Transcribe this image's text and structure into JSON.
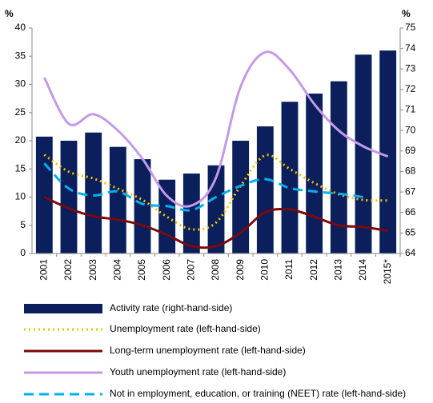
{
  "chart_data": {
    "type": "bar_line",
    "y_label": "%",
    "y2_label": "%",
    "categories": [
      "2001",
      "2002",
      "2003",
      "2004",
      "2005",
      "2006",
      "2007",
      "2008",
      "2009",
      "2010",
      "2011",
      "2012",
      "2013",
      "2014",
      "2015*"
    ],
    "ylim": [
      0,
      40
    ],
    "yticks": [
      0,
      5,
      10,
      15,
      20,
      25,
      30,
      35,
      40
    ],
    "y2lim": [
      64,
      75
    ],
    "y2ticks": [
      64,
      65,
      66,
      67,
      68,
      69,
      70,
      71,
      72,
      73,
      74,
      75
    ],
    "series": [
      {
        "name": "Activity rate (right-hand-side)",
        "type": "bar",
        "axis": "y2",
        "color": "#0b1f5c",
        "values": [
          69.7,
          69.5,
          69.9,
          69.2,
          68.6,
          67.6,
          67.9,
          68.3,
          69.5,
          70.2,
          71.4,
          71.8,
          72.4,
          73.7,
          73.9
        ]
      },
      {
        "name": "Unemployment rate (left-hand-side)",
        "type": "line",
        "style": "dotted",
        "color": "#f2c200",
        "values": [
          17.5,
          14.5,
          13.3,
          11.5,
          9.5,
          6.5,
          4.3,
          5.5,
          12,
          17.4,
          15,
          12.5,
          10.5,
          9.5,
          9.4
        ]
      },
      {
        "name": "Long-term unemployment rate (left-hand-side)",
        "type": "line",
        "style": "solid",
        "color": "#7b0a0a",
        "values": [
          10,
          8,
          6.6,
          6,
          5,
          3.3,
          1.3,
          1.3,
          3.7,
          7.3,
          7.8,
          6.5,
          5,
          4.7,
          4
        ]
      },
      {
        "name": "Youth unemployment rate (left-hand-side)",
        "type": "line",
        "style": "solid",
        "color": "#c49ae8",
        "values": [
          31.2,
          23,
          24.7,
          21.8,
          16.8,
          10.2,
          8.5,
          13.5,
          29.6,
          35.7,
          32.6,
          26.5,
          21.8,
          19,
          17.2
        ]
      },
      {
        "name": "Not in employment, education, or training (NEET) rate (left-hand-side)",
        "type": "line",
        "style": "dashed",
        "color": "#00b0f0",
        "values": [
          16,
          11.5,
          10.3,
          11,
          8.8,
          8.4,
          7.7,
          10,
          12,
          13.2,
          11.6,
          11,
          10.6,
          10,
          null
        ]
      }
    ]
  }
}
